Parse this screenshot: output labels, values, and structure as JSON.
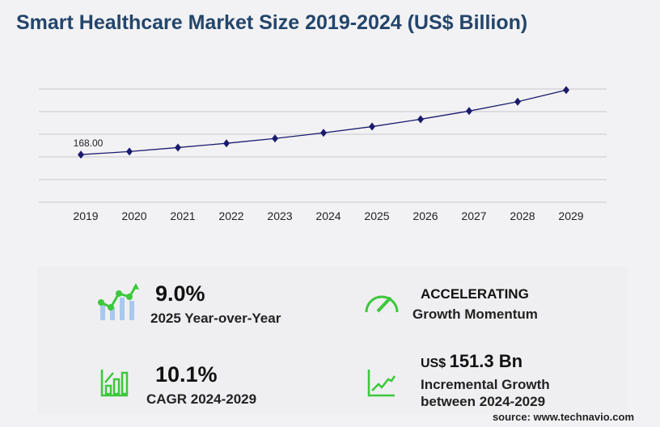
{
  "title": "Smart Healthcare Market Size 2019-2024 (US$ Billion)",
  "chart_data": {
    "type": "line",
    "title": "Smart Healthcare Market Size 2019-2024 (US$ Billion)",
    "categories": [
      "2019",
      "2020",
      "2021",
      "2022",
      "2023",
      "2024",
      "2025",
      "2026",
      "2027",
      "2028",
      "2029"
    ],
    "values": [
      168.0,
      179,
      193,
      208,
      225,
      245,
      267,
      293,
      322,
      355,
      396
    ],
    "data_labels": {
      "2019": "168.00"
    },
    "ylim": [
      0,
      400
    ],
    "grid": true,
    "color": "#1a1a6e"
  },
  "stats": {
    "yoy_value": "9.0%",
    "yoy_label": "2025 Year-over-Year",
    "momentum_value": "ACCELERATING",
    "momentum_label": "Growth Momentum",
    "cagr_value": "10.1%",
    "cagr_label": "CAGR 2024-2029",
    "incr_currency": "US$",
    "incr_value": "151.3 Bn",
    "incr_label1": "Incremental Growth",
    "incr_label2": "between 2024-2029"
  },
  "source": "source: www.technavio.com",
  "colors": {
    "accent": "#3cc83c",
    "title": "#23456b",
    "line": "#1a1a6e"
  }
}
